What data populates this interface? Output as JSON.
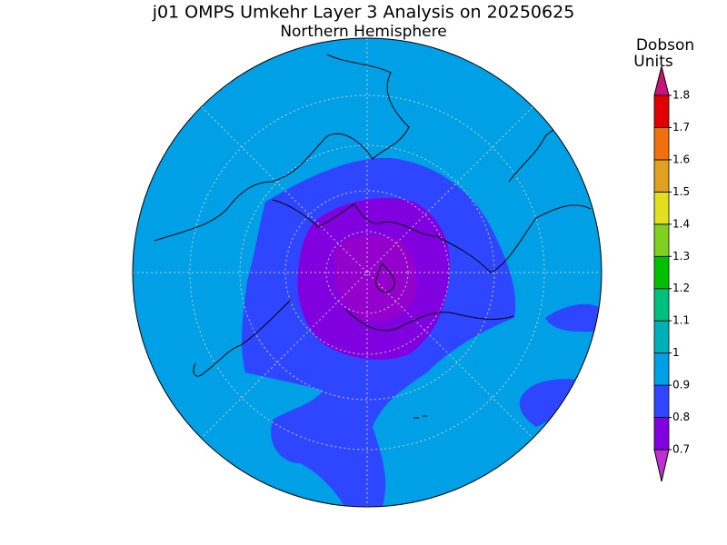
{
  "title": "j01 OMPS Umkehr Layer 3 Analysis on 20250625",
  "subtitle": "Northern Hemisphere",
  "colorbar": {
    "label_lines": [
      "Dobson",
      "Units"
    ],
    "ticks": [
      0.7,
      0.8,
      0.9,
      1,
      1.1,
      1.2,
      1.3,
      1.4,
      1.5,
      1.6,
      1.7,
      1.8
    ],
    "colors": [
      "#c030d0",
      "#8000e0",
      "#2e46ff",
      "#00a0e6",
      "#00b0b8",
      "#00c080",
      "#00c000",
      "#80d020",
      "#e0e020",
      "#e0a020",
      "#f07010",
      "#e00000",
      "#c81478"
    ]
  }
}
